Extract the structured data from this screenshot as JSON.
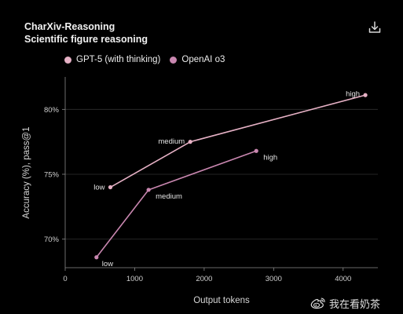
{
  "header": {
    "title": "CharXiv-Reasoning",
    "subtitle": "Scientific figure reasoning"
  },
  "toolbar": {
    "download_icon": "download-icon"
  },
  "watermark": {
    "logo_icon": "weibo-logo",
    "text": "我在看奶茶"
  },
  "colors": {
    "background": "#000000",
    "series": [
      "#e6b1c5",
      "#c987b0"
    ],
    "axis": "#8a8a8a",
    "grid": "#2f2f2f",
    "text": "#dddddd"
  },
  "chart_data": {
    "type": "line",
    "title": "CharXiv-Reasoning",
    "subtitle": "Scientific figure reasoning",
    "xlabel": "Output tokens",
    "ylabel": "Accuracy (%), pass@1",
    "xlim": [
      0,
      4500
    ],
    "ylim": [
      67.8,
      82.5
    ],
    "xticks": [
      0,
      1000,
      2000,
      3000,
      4000
    ],
    "xtick_labels": [
      "0",
      "1000",
      "2000",
      "3000",
      "4000"
    ],
    "yticks": [
      70,
      75,
      80
    ],
    "ytick_labels": [
      "70%",
      "75%",
      "80%"
    ],
    "grid": "horizontal",
    "legend_position": "top-left",
    "series": [
      {
        "name": "GPT-5 (with thinking)",
        "color": "#e6b1c5",
        "points": [
          {
            "x": 650,
            "y": 74.0,
            "label": "low"
          },
          {
            "x": 1800,
            "y": 77.5,
            "label": "medium"
          },
          {
            "x": 4320,
            "y": 81.1,
            "label": "high"
          }
        ]
      },
      {
        "name": "OpenAI o3",
        "color": "#c987b0",
        "points": [
          {
            "x": 450,
            "y": 68.6,
            "label": "low"
          },
          {
            "x": 1200,
            "y": 73.8,
            "label": "medium"
          },
          {
            "x": 2750,
            "y": 76.8,
            "label": "high"
          }
        ]
      }
    ]
  }
}
